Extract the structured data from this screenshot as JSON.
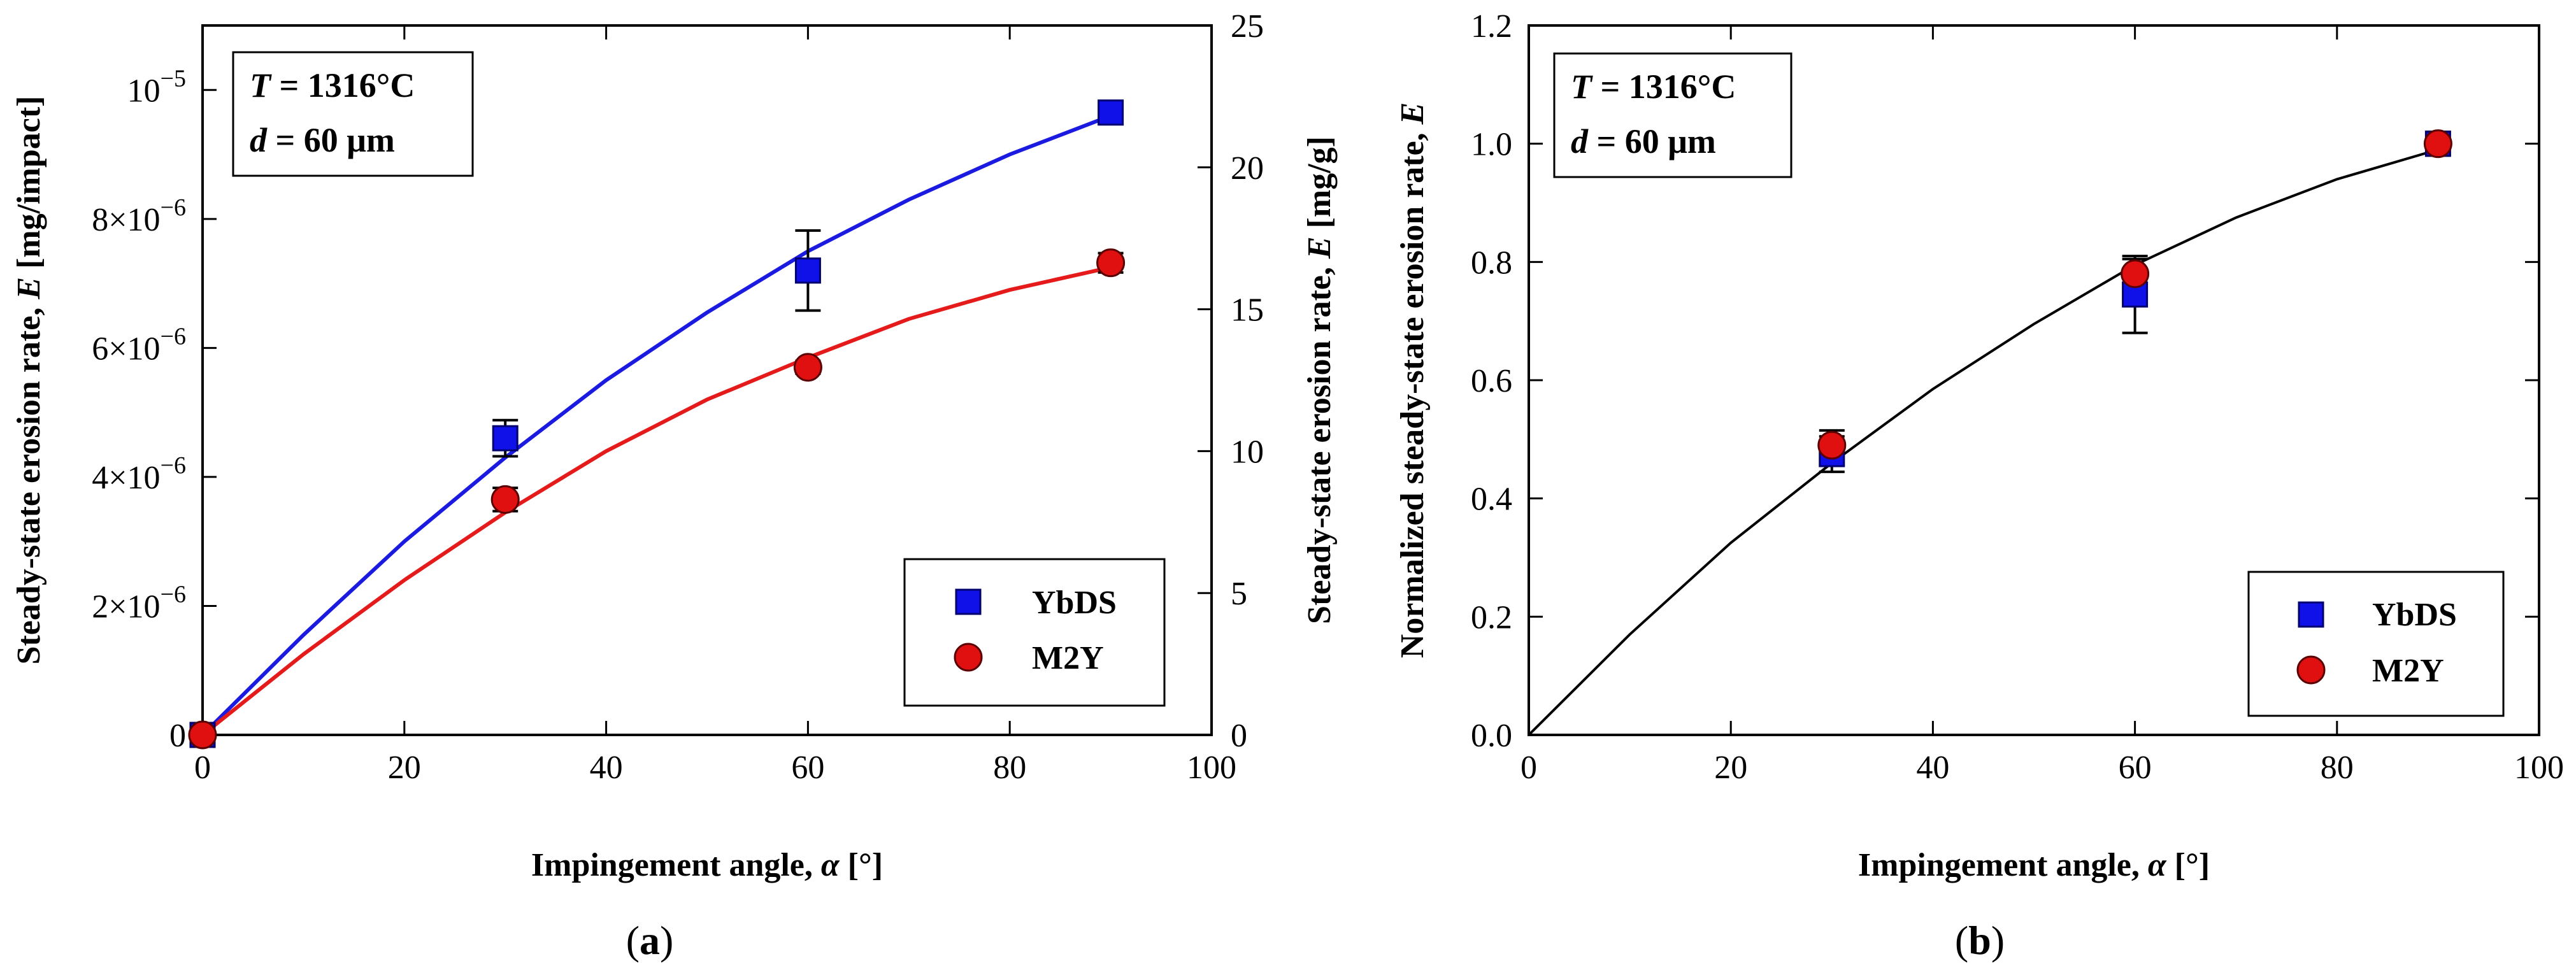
{
  "colors": {
    "ybds_marker": "#1010e8",
    "m2y_marker": "#e01010",
    "ybds_line_a": "#1a1ae0",
    "m2y_line_a": "#e51a1a",
    "fit_line_b": "#000000"
  },
  "chart_data": [
    {
      "type": "scatter",
      "panel_label": "(a)",
      "caption": {
        "open": "(",
        "letter": "a",
        "close": ")"
      },
      "annotation": {
        "T_symbol": "T",
        "T_text": " = 1316°C",
        "d_symbol": "d",
        "d_text": " = 60 μm"
      },
      "xlabel": {
        "text": "Impingement angle, ",
        "symbol": "α",
        "unit": " [°]"
      },
      "ylabel_left": {
        "text": "Steady-state erosion rate, ",
        "symbol": "E",
        "unit": " [mg/impact]"
      },
      "ylabel_right": {
        "text": "Steady-state erosion rate, ",
        "symbol": "E",
        "unit": " [mg/g]"
      },
      "xlim": [
        0,
        100
      ],
      "ylim_left": [
        0,
        1.1e-05
      ],
      "ylim_right": [
        0,
        25
      ],
      "xticks": [
        {
          "value": 0,
          "label": "0"
        },
        {
          "value": 20,
          "label": "20"
        },
        {
          "value": 40,
          "label": "40"
        },
        {
          "value": 60,
          "label": "60"
        },
        {
          "value": 80,
          "label": "80"
        },
        {
          "value": 100,
          "label": "100"
        }
      ],
      "yticks_left": [
        {
          "value": 0,
          "mant": "0",
          "exp": ""
        },
        {
          "value": 2e-06,
          "mant": "2×10",
          "exp": "−6"
        },
        {
          "value": 4e-06,
          "mant": "4×10",
          "exp": "−6"
        },
        {
          "value": 6e-06,
          "mant": "6×10",
          "exp": "−6"
        },
        {
          "value": 8e-06,
          "mant": "8×10",
          "exp": "−6"
        },
        {
          "value": 1e-05,
          "mant": "10",
          "exp": "−5"
        }
      ],
      "yticks_right": [
        {
          "value": 0,
          "label": "0"
        },
        {
          "value": 5,
          "label": "5"
        },
        {
          "value": 10,
          "label": "10"
        },
        {
          "value": 15,
          "label": "15"
        },
        {
          "value": 20,
          "label": "20"
        },
        {
          "value": 25,
          "label": "25"
        }
      ],
      "legend": {
        "position": "bottom-right",
        "entries": [
          "YbDS",
          "M2Y"
        ]
      },
      "series": [
        {
          "name": "YbDS",
          "marker": "square",
          "color": "#1010e8",
          "points": [
            {
              "x": 0,
              "y": 0,
              "err": 0
            },
            {
              "x": 30,
              "y": 4.6e-06,
              "err": 2.8e-07
            },
            {
              "x": 60,
              "y": 7.2e-06,
              "err": 6.2e-07
            },
            {
              "x": 90,
              "y": 9.65e-06,
              "err": 1.2e-07
            }
          ]
        },
        {
          "name": "M2Y",
          "marker": "circle",
          "color": "#e01010",
          "points": [
            {
              "x": 0,
              "y": 0,
              "err": 0
            },
            {
              "x": 30,
              "y": 3.65e-06,
              "err": 1.8e-07
            },
            {
              "x": 60,
              "y": 5.7e-06,
              "err": 1e-07
            },
            {
              "x": 90,
              "y": 7.32e-06,
              "err": 1.5e-07
            }
          ]
        }
      ],
      "fit_lines": [
        {
          "name": "YbDS fit",
          "color": "#1a1ae0",
          "x": [
            0,
            10,
            20,
            30,
            40,
            50,
            60,
            70,
            80,
            90
          ],
          "y": [
            0,
            1.55e-06,
            3e-06,
            4.3e-06,
            5.5e-06,
            6.55e-06,
            7.5e-06,
            8.3e-06,
            9e-06,
            9.6e-06
          ]
        },
        {
          "name": "M2Y fit",
          "color": "#e51a1a",
          "x": [
            0,
            10,
            20,
            30,
            40,
            50,
            60,
            70,
            80,
            90
          ],
          "y": [
            0,
            1.25e-06,
            2.4e-06,
            3.45e-06,
            4.4e-06,
            5.2e-06,
            5.85e-06,
            6.45e-06,
            6.9e-06,
            7.25e-06
          ]
        }
      ]
    },
    {
      "type": "scatter",
      "panel_label": "(b)",
      "caption": {
        "open": "(",
        "letter": "b",
        "close": ")"
      },
      "annotation": {
        "T_symbol": "T",
        "T_text": " = 1316°C",
        "d_symbol": "d",
        "d_text": " = 60 μm"
      },
      "xlabel": {
        "text": "Impingement angle, ",
        "symbol": "α",
        "unit": " [°]"
      },
      "ylabel": {
        "text": "Normalized steady-state erosion rate, ",
        "symbol": "E"
      },
      "xlim": [
        0,
        100
      ],
      "ylim": [
        0,
        1.2
      ],
      "xticks": [
        {
          "value": 0,
          "label": "0"
        },
        {
          "value": 20,
          "label": "20"
        },
        {
          "value": 40,
          "label": "40"
        },
        {
          "value": 60,
          "label": "60"
        },
        {
          "value": 80,
          "label": "80"
        },
        {
          "value": 100,
          "label": "100"
        }
      ],
      "yticks": [
        {
          "value": 0,
          "label": "0.0"
        },
        {
          "value": 0.2,
          "label": "0.2"
        },
        {
          "value": 0.4,
          "label": "0.4"
        },
        {
          "value": 0.6,
          "label": "0.6"
        },
        {
          "value": 0.8,
          "label": "0.8"
        },
        {
          "value": 1.0,
          "label": "1.0"
        },
        {
          "value": 1.2,
          "label": "1.2"
        }
      ],
      "legend": {
        "position": "bottom-right",
        "entries": [
          "YbDS",
          "M2Y"
        ]
      },
      "series": [
        {
          "name": "YbDS",
          "marker": "square",
          "color": "#1010e8",
          "points": [
            {
              "x": 30,
              "y": 0.475,
              "err": 0.03
            },
            {
              "x": 60,
              "y": 0.745,
              "err": 0.065
            },
            {
              "x": 90,
              "y": 1.0,
              "err": 0.015
            }
          ]
        },
        {
          "name": "M2Y",
          "marker": "circle",
          "color": "#e01010",
          "points": [
            {
              "x": 30,
              "y": 0.49,
              "err": 0.025
            },
            {
              "x": 60,
              "y": 0.78,
              "err": 0.025
            },
            {
              "x": 90,
              "y": 1.0,
              "err": 0.02
            }
          ]
        }
      ],
      "fit_lines": [
        {
          "name": "fit",
          "color": "#000000",
          "x": [
            0,
            10,
            20,
            30,
            40,
            50,
            60,
            70,
            80,
            90
          ],
          "y": [
            0,
            0.17,
            0.325,
            0.46,
            0.585,
            0.695,
            0.795,
            0.875,
            0.94,
            0.99
          ]
        }
      ]
    }
  ]
}
